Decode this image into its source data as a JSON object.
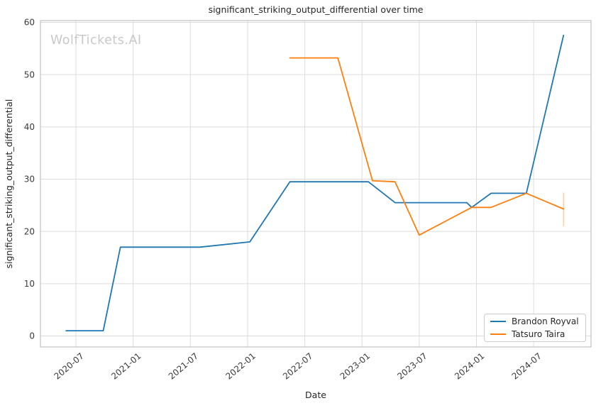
{
  "watermark": "WolfTickets.AI",
  "chart_data": {
    "type": "line",
    "title": "significant_striking_output_differential over time",
    "xlabel": "Date",
    "ylabel": "significant_striking_output_differential",
    "grid": true,
    "legend_position": "lower right",
    "x_tick_labels": [
      "2020-07",
      "2021-01",
      "2021-07",
      "2022-01",
      "2022-07",
      "2023-01",
      "2023-07",
      "2024-01",
      "2024-07"
    ],
    "y_ticks": [
      0,
      10,
      20,
      30,
      40,
      50,
      60
    ],
    "ylim": [
      -2,
      60.5
    ],
    "xlim": [
      "2020-03-10",
      "2025-01-01"
    ],
    "series": [
      {
        "name": "Brandon Royval",
        "color": "#1f77b4",
        "points": [
          [
            "2020-05-30",
            1.0
          ],
          [
            "2020-09-27",
            1.0
          ],
          [
            "2020-11-21",
            17.0
          ],
          [
            "2021-08-01",
            17.0
          ],
          [
            "2022-01-08",
            18.0
          ],
          [
            "2022-05-14",
            29.5
          ],
          [
            "2023-01-21",
            29.5
          ],
          [
            "2023-04-15",
            25.5
          ],
          [
            "2023-12-01",
            25.5
          ],
          [
            "2023-12-16",
            24.6
          ],
          [
            "2024-02-17",
            27.3
          ],
          [
            "2024-06-08",
            27.3
          ],
          [
            "2024-10-05",
            57.5
          ]
        ]
      },
      {
        "name": "Tatsuro Taira",
        "color": "#ff7f0e",
        "points": [
          [
            "2022-05-14",
            53.2
          ],
          [
            "2022-10-15",
            53.2
          ],
          [
            "2023-02-04",
            29.7
          ],
          [
            "2023-04-15",
            29.5
          ],
          [
            "2023-07-01",
            19.3
          ],
          [
            "2023-12-16",
            24.6
          ],
          [
            "2024-02-17",
            24.6
          ],
          [
            "2024-06-08",
            27.3
          ],
          [
            "2024-10-05",
            24.3
          ]
        ],
        "error_bar": {
          "date": "2024-10-05",
          "low": 21.0,
          "high": 27.4
        }
      }
    ]
  }
}
